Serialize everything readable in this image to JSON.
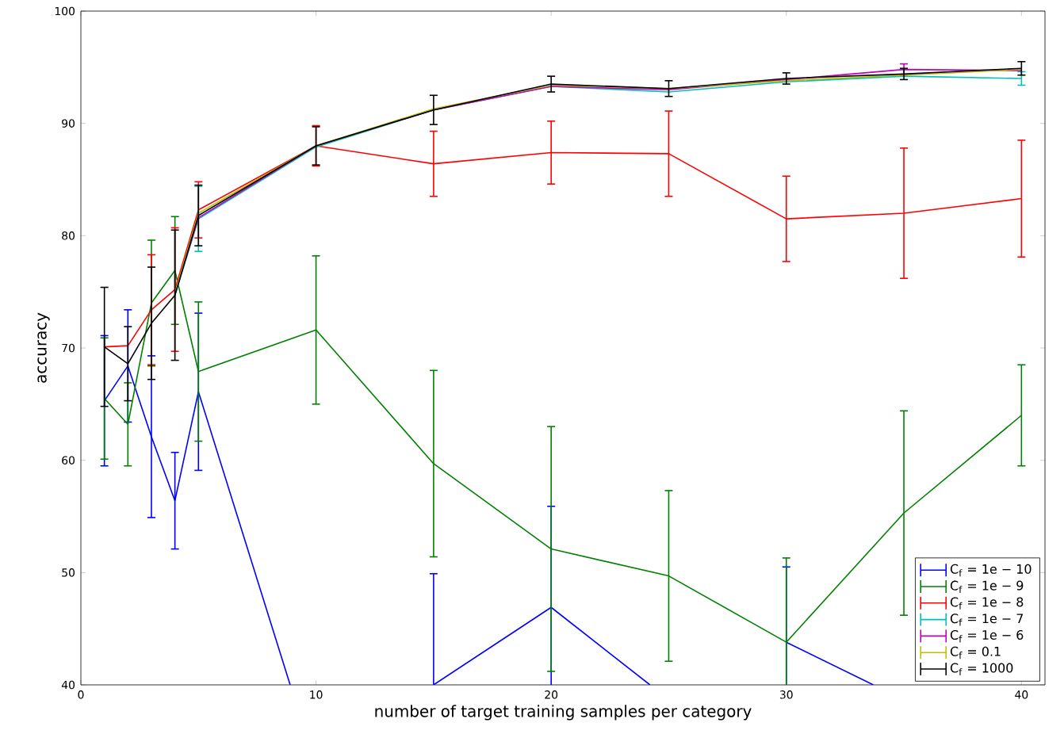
{
  "chart_data": {
    "type": "line",
    "xlabel": "number of target training samples per category",
    "ylabel": "accuracy",
    "x": [
      1,
      2,
      3,
      4,
      5,
      10,
      15,
      20,
      25,
      30,
      35,
      40
    ],
    "xlim": [
      0,
      41
    ],
    "xticks": [
      0,
      10,
      20,
      30,
      40
    ],
    "ylim": [
      40,
      100
    ],
    "yticks": [
      40,
      50,
      60,
      70,
      80,
      90,
      100
    ],
    "grid": false,
    "legend": "bottom right",
    "marker": "none",
    "line_style": "solid",
    "series": [
      {
        "name": "C$_{f}$ = 1e − 10",
        "color": "#0000ff",
        "x": [
          1,
          2,
          3,
          4,
          5,
          8.9,
          10,
          15,
          20,
          24.2,
          25,
          30,
          33.7
        ],
        "values": [
          65.3,
          68.4,
          62.1,
          56.4,
          66.1,
          40.0,
          null,
          40.0,
          46.9,
          40.0,
          null,
          43.8,
          40.0
        ],
        "errors": [
          5.8,
          5.0,
          7.2,
          4.3,
          7.0,
          null,
          null,
          9.9,
          9.0,
          null,
          null,
          6.7,
          null
        ]
      },
      {
        "name": "C$_{f}$ = 1e − 9",
        "color": "#008000",
        "values": [
          65.5,
          63.2,
          74.0,
          76.9,
          67.9,
          71.6,
          59.7,
          52.1,
          49.7,
          43.8,
          55.3,
          64.0
        ],
        "errors": [
          5.4,
          3.7,
          5.6,
          4.8,
          6.2,
          6.6,
          8.3,
          10.9,
          7.6,
          7.5,
          9.1,
          4.5
        ]
      },
      {
        "name": "C$_{f}$ = 1e − 8",
        "color": "#ff0000",
        "values": [
          70.1,
          70.2,
          73.4,
          75.2,
          82.3,
          88.0,
          86.4,
          87.4,
          87.3,
          81.5,
          82.0,
          83.3
        ],
        "errors": [
          null,
          null,
          4.9,
          5.5,
          2.5,
          1.8,
          2.9,
          2.8,
          3.8,
          3.8,
          5.8,
          5.2
        ]
      },
      {
        "name": "C$_{f}$ = 1e − 7",
        "color": "#00bfbf",
        "values": [
          null,
          null,
          null,
          74.7,
          81.5,
          87.9,
          91.2,
          93.3,
          92.8,
          93.7,
          94.2,
          94.0
        ],
        "errors": [
          null,
          null,
          null,
          null,
          2.9,
          null,
          null,
          null,
          null,
          null,
          null,
          0.6
        ]
      },
      {
        "name": "C$_{f}$ = 1e − 6",
        "color": "#bf00bf",
        "values": [
          null,
          null,
          null,
          74.8,
          81.6,
          88.0,
          91.2,
          93.3,
          93.0,
          93.9,
          94.8,
          94.7
        ],
        "errors": [
          null,
          null,
          null,
          null,
          null,
          null,
          null,
          null,
          null,
          null,
          0.5,
          null
        ]
      },
      {
        "name": "C$_{f}$ = 0.1",
        "color": "#bfbf00",
        "values": [
          null,
          null,
          null,
          74.9,
          82.0,
          88.0,
          91.3,
          93.4,
          93.1,
          93.8,
          94.3,
          94.8
        ]
      },
      {
        "name": "C$_{f}$ = 1000",
        "color": "#000000",
        "values": [
          70.1,
          68.6,
          72.2,
          74.7,
          81.8,
          88.0,
          91.2,
          93.5,
          93.1,
          94.0,
          94.4,
          94.9
        ],
        "errors": [
          5.3,
          3.3,
          5.0,
          5.8,
          2.7,
          1.7,
          1.3,
          0.7,
          0.7,
          0.5,
          0.5,
          0.6
        ]
      }
    ]
  }
}
